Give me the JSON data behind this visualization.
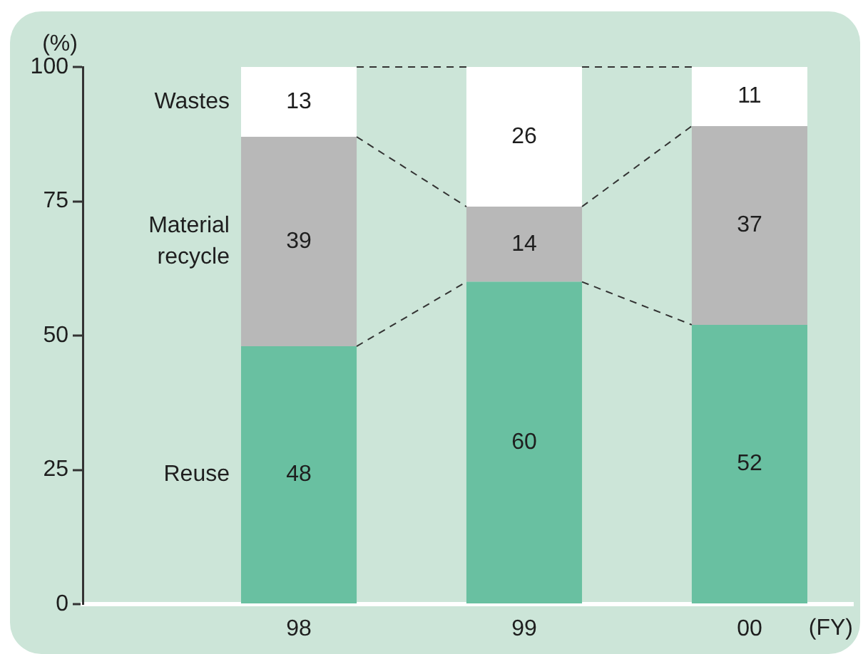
{
  "chart_data": {
    "type": "bar",
    "stacked": true,
    "categories": [
      "98",
      "99",
      "00"
    ],
    "series": [
      {
        "name": "Reuse",
        "color": "#69c0a1",
        "values": [
          48,
          60,
          52
        ]
      },
      {
        "name": "Material recycle",
        "color": "#b8b8b8",
        "values": [
          39,
          14,
          37
        ]
      },
      {
        "name": "Wastes",
        "color": "#ffffff",
        "values": [
          13,
          26,
          11
        ]
      }
    ],
    "ylabel": "(%)",
    "xlabel": "(FY)",
    "ylim": [
      0,
      100
    ],
    "yticks": [
      0,
      25,
      50,
      75,
      100
    ],
    "data_labels": true,
    "grid": false,
    "legend": false
  }
}
